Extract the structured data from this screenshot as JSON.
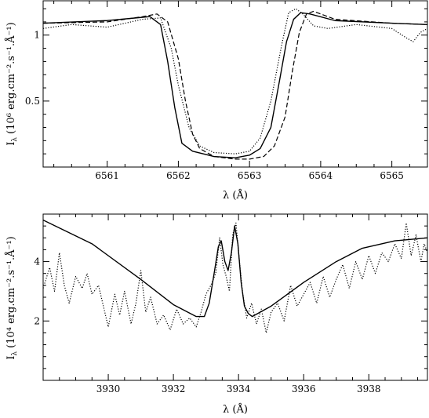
{
  "chart_data": [
    {
      "type": "line",
      "xlabel": "λ (Å)",
      "ylabel": "I",
      "ylabel_subscript": "λ",
      "ylabel_units_html": "(10⁶ erg.cm⁻².s⁻¹.Å⁻¹)",
      "xlim": [
        6560.1,
        6565.5
      ],
      "ylim": [
        0.0,
        1.26
      ],
      "xticks": [
        6561,
        6562,
        6563,
        6564,
        6565
      ],
      "xtick_labels": [
        "6561",
        "6562",
        "6563",
        "6564",
        "6565"
      ],
      "yticks": [
        0.5,
        1.0
      ],
      "ytick_labels": [
        "0.5",
        "1"
      ],
      "series": [
        {
          "style": "solid",
          "x": [
            6560.1,
            6561.0,
            6561.4,
            6561.6,
            6561.75,
            6561.85,
            6561.95,
            6562.05,
            6562.2,
            6562.5,
            6562.8,
            6563.0,
            6563.15,
            6563.3,
            6563.42,
            6563.52,
            6563.62,
            6563.72,
            6563.85,
            6564.2,
            6565.0,
            6565.5
          ],
          "y": [
            1.09,
            1.11,
            1.13,
            1.14,
            1.08,
            0.8,
            0.45,
            0.18,
            0.12,
            0.08,
            0.07,
            0.09,
            0.14,
            0.3,
            0.65,
            0.95,
            1.12,
            1.17,
            1.16,
            1.11,
            1.09,
            1.08
          ]
        },
        {
          "style": "dashed",
          "x": [
            6560.1,
            6561.0,
            6561.5,
            6561.7,
            6561.85,
            6562.0,
            6562.1,
            6562.2,
            6562.3,
            6562.5,
            6562.8,
            6563.0,
            6563.2,
            6563.35,
            6563.5,
            6563.6,
            6563.7,
            6563.8,
            6563.9,
            6564.2,
            6565.0,
            6565.5
          ],
          "y": [
            1.09,
            1.1,
            1.14,
            1.16,
            1.1,
            0.82,
            0.5,
            0.25,
            0.14,
            0.08,
            0.06,
            0.06,
            0.08,
            0.16,
            0.38,
            0.72,
            1.02,
            1.16,
            1.18,
            1.12,
            1.09,
            1.08
          ]
        },
        {
          "style": "dotted",
          "x": [
            6560.1,
            6560.5,
            6561.0,
            6561.5,
            6561.75,
            6561.9,
            6562.0,
            6562.15,
            6562.3,
            6562.5,
            6562.8,
            6563.0,
            6563.15,
            6563.3,
            6563.45,
            6563.55,
            6563.65,
            6563.75,
            6563.9,
            6564.1,
            6564.5,
            6565.0,
            6565.2,
            6565.3,
            6565.4,
            6565.5
          ],
          "y": [
            1.05,
            1.08,
            1.06,
            1.12,
            1.13,
            0.9,
            0.62,
            0.3,
            0.16,
            0.11,
            0.1,
            0.12,
            0.22,
            0.5,
            0.92,
            1.17,
            1.2,
            1.16,
            1.07,
            1.05,
            1.08,
            1.05,
            0.98,
            0.95,
            1.02,
            1.05
          ]
        }
      ]
    },
    {
      "type": "line",
      "xlabel": "λ (Å)",
      "ylabel": "I",
      "ylabel_subscript": "λ",
      "ylabel_units_html": "(10⁴ erg.cm⁻².s⁻¹.Å⁻¹)",
      "xlim": [
        3928.0,
        3939.8
      ],
      "ylim": [
        0.0,
        5.6
      ],
      "xticks": [
        3930,
        3932,
        3934,
        3936,
        3938
      ],
      "xtick_labels": [
        "3930",
        "3932",
        "3934",
        "3936",
        "3938"
      ],
      "yticks": [
        2,
        4
      ],
      "ytick_labels": [
        "2",
        "4"
      ],
      "series": [
        {
          "style": "solid",
          "x": [
            3928.0,
            3929.5,
            3931.0,
            3932.0,
            3932.7,
            3932.95,
            3933.1,
            3933.25,
            3933.38,
            3933.47,
            3933.58,
            3933.68,
            3933.78,
            3933.88,
            3933.98,
            3934.08,
            3934.18,
            3934.3,
            3934.42,
            3935.0,
            3936.0,
            3937.0,
            3937.8,
            3938.8,
            3939.8
          ],
          "y": [
            5.4,
            4.6,
            3.4,
            2.55,
            2.15,
            2.15,
            2.6,
            3.6,
            4.5,
            4.7,
            4.0,
            3.7,
            4.3,
            5.2,
            4.6,
            3.3,
            2.5,
            2.25,
            2.15,
            2.5,
            3.3,
            4.0,
            4.45,
            4.7,
            4.8
          ]
        },
        {
          "style": "dotted",
          "x": [
            3928.0,
            3928.2,
            3928.35,
            3928.5,
            3928.65,
            3928.8,
            3929.0,
            3929.2,
            3929.35,
            3929.5,
            3929.7,
            3929.85,
            3930.0,
            3930.2,
            3930.35,
            3930.5,
            3930.7,
            3930.85,
            3931.0,
            3931.15,
            3931.3,
            3931.5,
            3931.7,
            3931.9,
            3932.1,
            3932.3,
            3932.5,
            3932.7,
            3932.85,
            3933.0,
            3933.15,
            3933.3,
            3933.42,
            3933.52,
            3933.62,
            3933.72,
            3933.82,
            3933.92,
            3934.02,
            3934.12,
            3934.25,
            3934.4,
            3934.55,
            3934.7,
            3934.85,
            3935.0,
            3935.2,
            3935.4,
            3935.6,
            3935.8,
            3936.0,
            3936.2,
            3936.4,
            3936.6,
            3936.8,
            3937.0,
            3937.2,
            3937.4,
            3937.6,
            3937.8,
            3938.0,
            3938.2,
            3938.4,
            3938.6,
            3938.8,
            3939.0,
            3939.15,
            3939.3,
            3939.45,
            3939.6,
            3939.7,
            3939.8
          ],
          "y": [
            3.1,
            3.8,
            3.0,
            4.3,
            3.2,
            2.6,
            3.5,
            3.1,
            3.6,
            2.9,
            3.2,
            2.5,
            1.8,
            2.9,
            2.2,
            3.0,
            1.9,
            2.6,
            3.7,
            2.3,
            2.8,
            1.9,
            2.2,
            1.7,
            2.4,
            1.9,
            2.1,
            1.8,
            2.3,
            2.9,
            3.2,
            3.6,
            4.8,
            3.9,
            3.5,
            3.0,
            4.9,
            5.3,
            4.1,
            3.0,
            2.1,
            2.6,
            1.9,
            2.4,
            1.6,
            2.3,
            2.6,
            2.0,
            3.2,
            2.5,
            2.9,
            3.3,
            2.6,
            3.5,
            2.8,
            3.4,
            3.9,
            3.1,
            4.0,
            3.4,
            4.2,
            3.6,
            4.3,
            4.0,
            4.6,
            4.1,
            5.3,
            4.2,
            4.9,
            4.0,
            4.6,
            4.3
          ]
        }
      ]
    }
  ]
}
